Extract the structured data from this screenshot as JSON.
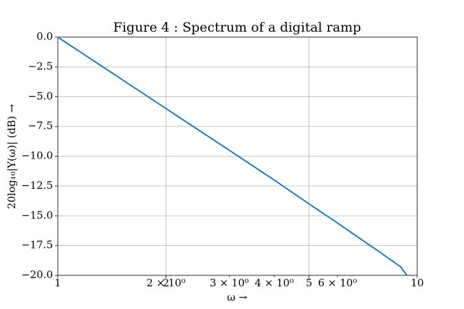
{
  "chart_data": {
    "type": "line",
    "title": "Figure 4 : Spectrum of a digital ramp",
    "x_label": "ω →",
    "y_label": "20log₁₀|Y(ω)| (dB) →",
    "x_scale": "log",
    "grid": true,
    "x": [
      1,
      2,
      3,
      4,
      5,
      6,
      7,
      8,
      9,
      9.36
    ],
    "series": [
      {
        "color": "#1f77b4",
        "values": [
          0,
          -6.0,
          -9.5,
          -12.0,
          -14.0,
          -15.6,
          -17.0,
          -18.2,
          -19.3,
          -20.0
        ]
      }
    ],
    "xlim": [
      1,
      10
    ],
    "xticks": [
      1,
      2,
      5,
      10
    ],
    "xminorticks": [
      {
        "value": 2,
        "label": "2 × 10⁰"
      },
      {
        "value": 3,
        "label": "3 × 10⁰"
      },
      {
        "value": 4,
        "label": "4 × 10⁰"
      },
      {
        "value": 6,
        "label": "6 × 10⁰"
      }
    ],
    "ylim": [
      -20,
      0
    ],
    "yticks": [
      {
        "value": -20,
        "label": "−20.0"
      },
      {
        "value": -17.5,
        "label": "−17.5"
      },
      {
        "value": -15,
        "label": "−15.0"
      },
      {
        "value": -12.5,
        "label": "−12.5"
      },
      {
        "value": -10,
        "label": "−10.0"
      },
      {
        "value": -7.5,
        "label": "−7.5"
      },
      {
        "value": -5,
        "label": "−5.0"
      },
      {
        "value": -2.5,
        "label": "−2.5"
      },
      {
        "value": 0,
        "label": "0.0"
      }
    ]
  }
}
